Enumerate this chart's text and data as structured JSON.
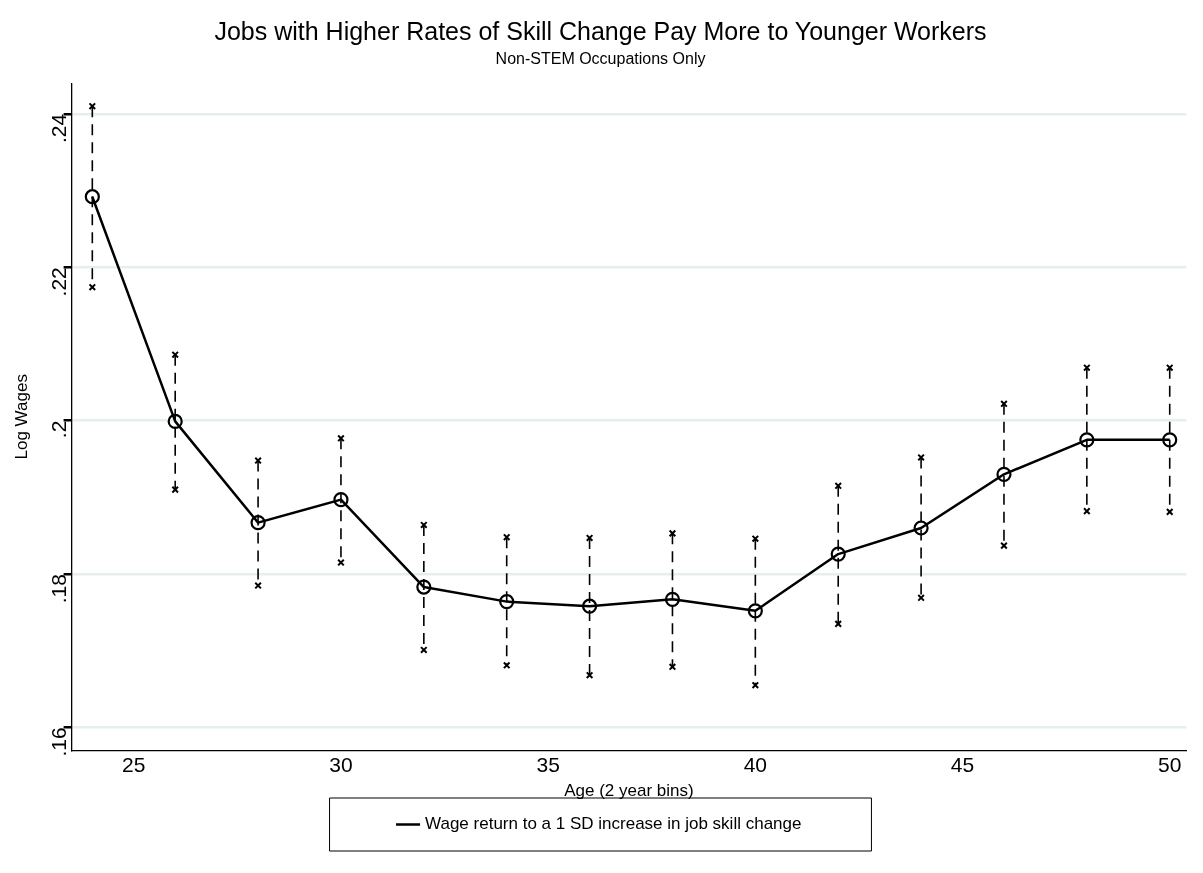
{
  "chart_data": {
    "type": "line",
    "title": "Jobs with Higher Rates of Skill Change Pay More to Younger Workers",
    "subtitle": "Non-STEM Occupations Only",
    "xlabel": "Age (2 year bins)",
    "ylabel": "Log Wages",
    "x": [
      24,
      26,
      28,
      30,
      32,
      34,
      36,
      38,
      40,
      42,
      44,
      46,
      48,
      50
    ],
    "series": [
      {
        "name": "Wage return to a 1 SD increase in job skill change",
        "color": "#000000",
        "values": [
          0.2292,
          0.1999,
          0.1867,
          0.1897,
          0.1783,
          0.1764,
          0.1758,
          0.1767,
          0.1752,
          0.1826,
          0.186,
          0.193,
          0.1975,
          0.1975
        ],
        "errors": [
          [
            0.2174,
            0.241
          ],
          [
            0.191,
            0.2086
          ],
          [
            0.1785,
            0.1948
          ],
          [
            0.1815,
            0.1977
          ],
          [
            0.1701,
            0.1864
          ],
          [
            0.1681,
            0.1848
          ],
          [
            0.1668,
            0.1847
          ],
          [
            0.1679,
            0.1853
          ],
          [
            0.1655,
            0.1846
          ],
          [
            0.1735,
            0.1915
          ],
          [
            0.1769,
            0.1952
          ],
          [
            0.1837,
            0.2022
          ],
          [
            0.1882,
            0.2069
          ],
          [
            0.1881,
            0.2069
          ]
        ]
      },
      {
        "type": "scatter",
        "color": "#000000",
        "marker": "cross",
        "values": [
          0.2174,
          0.191,
          0.1785,
          0.1815,
          0.1701,
          0.1681,
          0.1668,
          0.1679,
          0.1655,
          0.1735,
          0.1769,
          0.1837,
          0.1882,
          0.1881
        ]
      },
      {
        "type": "scatter",
        "color": "#000000",
        "marker": "cross",
        "values": [
          0.241,
          0.2086,
          0.1948,
          0.1977,
          0.1864,
          0.1848,
          0.1847,
          0.1853,
          0.1846,
          0.1915,
          0.1952,
          0.2022,
          0.2069,
          0.2069
        ]
      }
    ],
    "xlim": [
      23.5,
      50.4
    ],
    "xticks": [
      25,
      30,
      35,
      40,
      45,
      50
    ],
    "ylim": [
      0.157,
      0.244
    ],
    "yticks": [
      {
        "value": 0.16,
        "label": ".16"
      },
      {
        "value": 0.18,
        "label": ".18"
      },
      {
        "value": 0.2,
        "label": ".2"
      },
      {
        "value": 0.22,
        "label": ".22"
      },
      {
        "value": 0.24,
        "label": ".24"
      }
    ],
    "grid": "y",
    "legend": "bottom",
    "marker": "circle",
    "line_style": "solid"
  }
}
